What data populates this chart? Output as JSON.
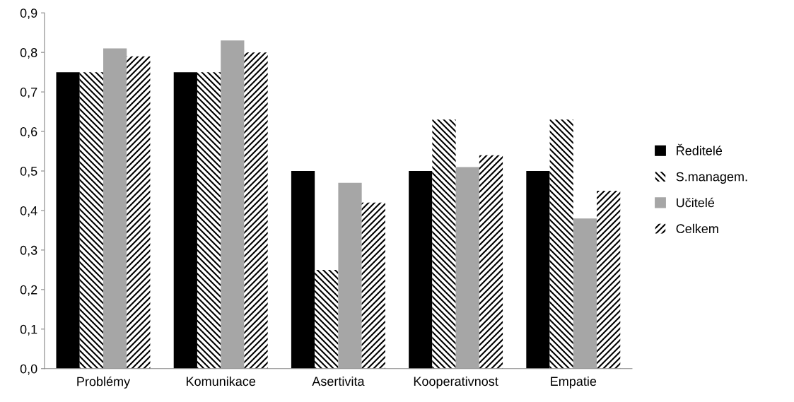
{
  "chart_data": {
    "type": "bar",
    "categories": [
      "Problémy",
      "Komunikace",
      "Asertivita",
      "Kooperativnost",
      "Empatie"
    ],
    "series": [
      {
        "name": "Ředitelé",
        "color": "#000000",
        "values": [
          0.75,
          0.75,
          0.5,
          0.5,
          0.5
        ]
      },
      {
        "name": "S.managem.",
        "color": "#000000",
        "values": [
          0.75,
          0.75,
          0.25,
          0.63,
          0.63
        ]
      },
      {
        "name": "Učitelé",
        "color": "#a6a6a6",
        "values": [
          0.81,
          0.83,
          0.47,
          0.51,
          0.38
        ]
      },
      {
        "name": "Celkem",
        "color": "#000000",
        "values": [
          0.79,
          0.8,
          0.42,
          0.54,
          0.45
        ]
      }
    ],
    "ylim": [
      0,
      0.9
    ],
    "yticks": [
      {
        "value": 0,
        "label": "0,0"
      },
      {
        "value": 0.1,
        "label": "0,1"
      },
      {
        "value": 0.2,
        "label": "0,2"
      },
      {
        "value": 0.3,
        "label": "0,3"
      },
      {
        "value": 0.4,
        "label": "0,4"
      },
      {
        "value": 0.5,
        "label": "0,5"
      },
      {
        "value": 0.6,
        "label": "0,6"
      },
      {
        "value": 0.7,
        "label": "0,7"
      },
      {
        "value": 0.8,
        "label": "0,8"
      },
      {
        "value": 0.9,
        "label": "0,9"
      }
    ],
    "grid": false,
    "legend": "right"
  }
}
